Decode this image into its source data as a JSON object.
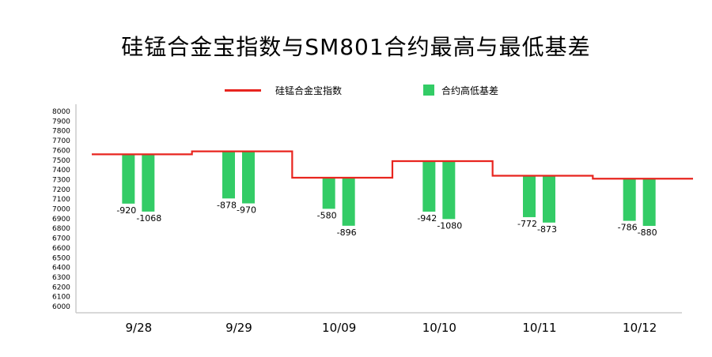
{
  "chart_data": {
    "type": "bar",
    "title": "硅锰合金宝指数与SM801合约最高与最低基差",
    "legend": [
      "硅锰合金宝指数",
      "合约高低基差"
    ],
    "categories": [
      "9/28",
      "9/29",
      "10/09",
      "10/10",
      "10/11",
      "10/12"
    ],
    "yticks": [
      6000,
      6100,
      6200,
      6300,
      6400,
      6500,
      6600,
      6700,
      6800,
      6900,
      7000,
      7100,
      7200,
      7300,
      7400,
      7500,
      7600,
      7700,
      7800,
      7900,
      8000
    ],
    "ylim": [
      6000,
      8000
    ],
    "index_values": [
      7560,
      7590,
      7320,
      7490,
      7340,
      7310
    ],
    "basis_high": [
      -920,
      -878,
      -580,
      -942,
      -772,
      -786
    ],
    "basis_low": [
      -1068,
      -970,
      -896,
      -1080,
      -873,
      -880
    ],
    "basis_high_labels": [
      "-920",
      "-878",
      "-580",
      "-942",
      "-772",
      "-786"
    ],
    "basis_low_labels": [
      "-1068",
      "-970",
      "-896",
      "-1080",
      "-873",
      "-880"
    ],
    "colors": {
      "index": "#e8251f",
      "basis": "#33cc66",
      "axis": "#cccccc"
    }
  }
}
